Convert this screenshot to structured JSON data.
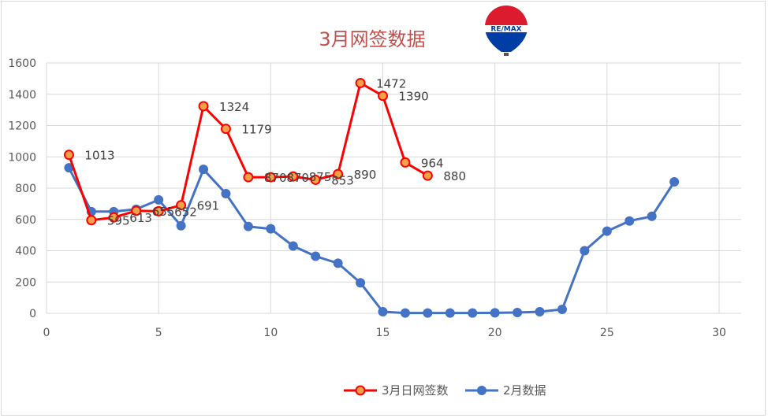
{
  "chart_data": {
    "type": "line",
    "title": "3月网签数据",
    "xlabel": "",
    "ylabel": "",
    "xlim": [
      0,
      30
    ],
    "ylim": [
      0,
      1600
    ],
    "x_ticks": [
      0,
      5,
      10,
      15,
      20,
      25,
      30
    ],
    "y_ticks": [
      0,
      200,
      400,
      600,
      800,
      1000,
      1200,
      1400,
      1600
    ],
    "grid": "vertical and horizontal",
    "legend_position": "bottom",
    "series": [
      {
        "name": "3月日网签数",
        "color": "#ff0000",
        "marker_fill": "#f4a14a",
        "x": [
          1,
          2,
          3,
          4,
          5,
          6,
          7,
          8,
          9,
          10,
          11,
          12,
          13,
          14,
          15,
          16,
          17
        ],
        "values": [
          1013,
          595,
          613,
          655,
          652,
          691,
          1324,
          1179,
          870,
          870,
          875,
          853,
          890,
          1472,
          1390,
          964,
          880
        ],
        "labels": [
          "1013",
          "595",
          "613",
          "655",
          "652",
          "691",
          "1324",
          "1179",
          "870",
          "870",
          "875",
          "853",
          "890",
          "1472",
          "1390",
          "964",
          "880"
        ]
      },
      {
        "name": "2月数据",
        "color": "#4472c4",
        "marker_fill": "#4472c4",
        "x": [
          1,
          2,
          3,
          4,
          5,
          6,
          7,
          8,
          9,
          10,
          11,
          12,
          13,
          14,
          15,
          16,
          17,
          18,
          19,
          20,
          21,
          22,
          23,
          24,
          25,
          26,
          27,
          28
        ],
        "values": [
          930,
          650,
          650,
          665,
          725,
          560,
          920,
          765,
          555,
          540,
          430,
          365,
          320,
          195,
          10,
          2,
          2,
          2,
          2,
          3,
          5,
          10,
          25,
          400,
          525,
          590,
          620,
          840
        ]
      }
    ]
  },
  "logo": {
    "text": "RE/MAX",
    "colors": [
      "#dc1c2e",
      "#ffffff",
      "#003da5"
    ]
  }
}
